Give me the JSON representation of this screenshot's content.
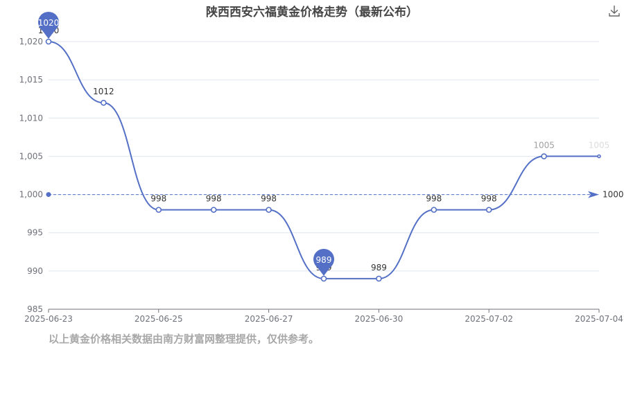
{
  "chart_data": {
    "type": "line",
    "title": "陕西西安六福黄金价格走势（最新公布）",
    "x": [
      "2025-06-23",
      "2025-06-24",
      "2025-06-25",
      "2025-06-26",
      "2025-06-27",
      "2025-06-28",
      "2025-06-30",
      "2025-07-01",
      "2025-07-02",
      "2025-07-03",
      "2025-07-04"
    ],
    "x_tick_labels": [
      "2025-06-23",
      "2025-06-25",
      "2025-06-27",
      "2025-06-30",
      "2025-07-02",
      "2025-07-04"
    ],
    "series": [
      {
        "values": [
          1020,
          1012,
          998,
          998,
          998,
          989,
          989,
          998,
          998,
          1005,
          1005
        ]
      }
    ],
    "ylim": [
      985,
      1020
    ],
    "y_ticks": [
      985,
      990,
      995,
      1000,
      1005,
      1010,
      1015,
      1020
    ],
    "y_tick_labels": [
      "985",
      "990",
      "995",
      "1,000",
      "1,005",
      "1,010",
      "1,015",
      "1,020"
    ],
    "max_pin": {
      "label": "1020",
      "value": 1020
    },
    "min_pin": {
      "label": "989",
      "value": 989
    },
    "average_line": {
      "value": 1000,
      "label": "1000"
    },
    "grid": true,
    "legend": "none",
    "colors": {
      "line": "#5470c6",
      "grid": "#e0e6f1",
      "axis": "#6e7079",
      "label": "#333333",
      "faded_label": "#c8c8c8"
    }
  },
  "footnote": "以上黄金价格相关数据由南方财富网整理提供，仅供参考。",
  "toolbar": {
    "download_icon": "download-icon"
  }
}
